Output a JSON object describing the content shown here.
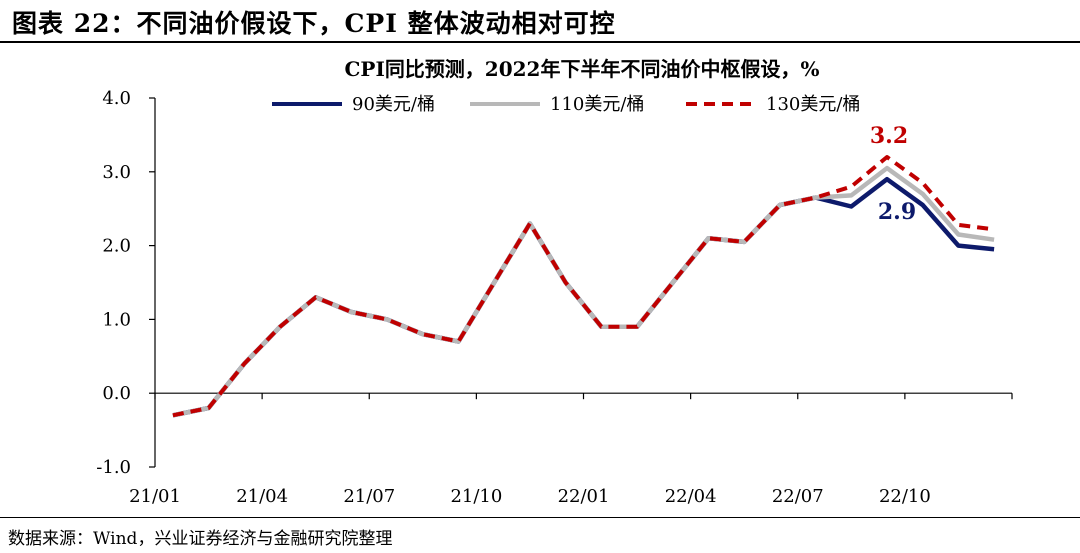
{
  "figure": {
    "title": "图表 22：不同油价假设下，CPI 整体波动相对可控",
    "source": "数据来源：Wind，兴业证券经济与金融研究院整理"
  },
  "chart_data": {
    "type": "line",
    "title": "CPI同比预测，2022年下半年不同油价中枢假设，%",
    "x": [
      "21/01",
      "21/02",
      "21/03",
      "21/04",
      "21/05",
      "21/06",
      "21/07",
      "21/08",
      "21/09",
      "21/10",
      "21/11",
      "21/12",
      "22/01",
      "22/02",
      "22/03",
      "22/04",
      "22/05",
      "22/06",
      "22/07",
      "22/08",
      "22/09",
      "22/10",
      "22/11",
      "22/12"
    ],
    "x_tick_labels": [
      "21/01",
      "21/04",
      "21/07",
      "21/10",
      "22/01",
      "22/04",
      "22/07",
      "22/10"
    ],
    "ylim": [
      -1.0,
      4.0
    ],
    "y_ticks": [
      "-1.0",
      "0.0",
      "1.0",
      "2.0",
      "3.0",
      "4.0"
    ],
    "legend_position": "top",
    "series": [
      {
        "name": "90美元/桶",
        "color": "#0d1a6b",
        "style": "solid",
        "values": [
          -0.3,
          -0.2,
          0.4,
          0.9,
          1.3,
          1.1,
          1.0,
          0.8,
          0.7,
          1.5,
          2.3,
          1.5,
          0.9,
          0.9,
          1.5,
          2.1,
          2.05,
          2.55,
          2.65,
          2.53,
          2.9,
          2.55,
          2.0,
          1.95
        ]
      },
      {
        "name": "110美元/桶",
        "color": "#b8b8b8",
        "style": "solid",
        "values": [
          -0.3,
          -0.2,
          0.4,
          0.9,
          1.3,
          1.1,
          1.0,
          0.8,
          0.7,
          1.5,
          2.3,
          1.5,
          0.9,
          0.9,
          1.5,
          2.1,
          2.05,
          2.55,
          2.65,
          2.68,
          3.05,
          2.7,
          2.15,
          2.08
        ]
      },
      {
        "name": "130美元/桶",
        "color": "#c00000",
        "style": "dashed",
        "values": [
          -0.3,
          -0.2,
          0.4,
          0.9,
          1.3,
          1.1,
          1.0,
          0.8,
          0.7,
          1.5,
          2.3,
          1.5,
          0.9,
          0.9,
          1.5,
          2.1,
          2.05,
          2.55,
          2.65,
          2.8,
          3.2,
          2.85,
          2.28,
          2.22
        ]
      }
    ],
    "annotations": [
      {
        "text": "3.2",
        "series": 2,
        "index": 20,
        "color": "#c00000",
        "placement": "above"
      },
      {
        "text": "2.9",
        "series": 0,
        "index": 20,
        "color": "#0d1a6b",
        "placement": "below"
      }
    ]
  }
}
